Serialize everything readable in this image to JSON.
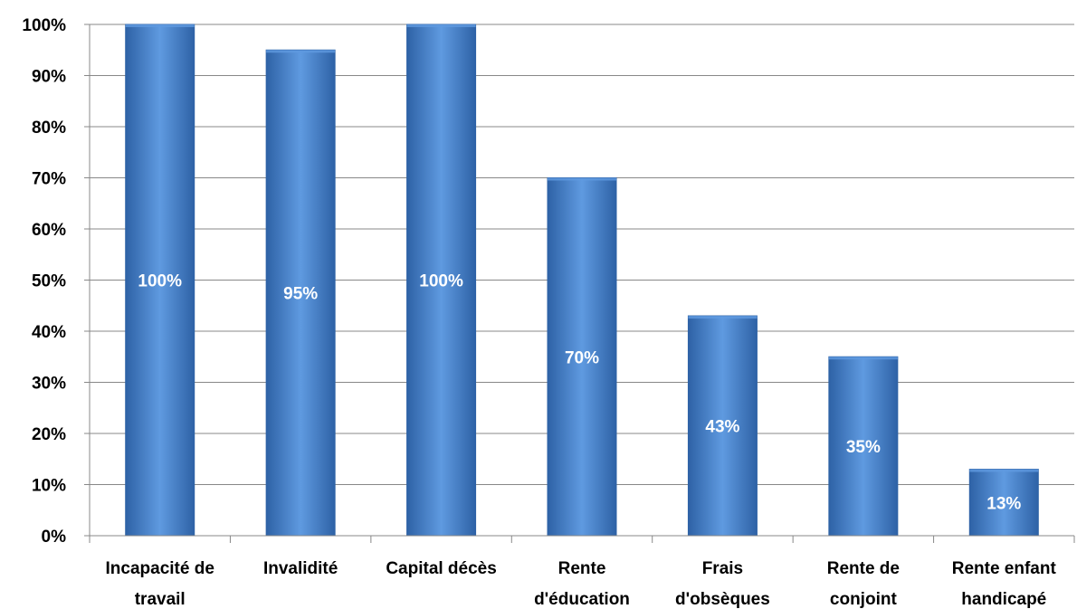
{
  "chart_data": {
    "type": "bar",
    "categories": [
      [
        "Incapacité de",
        "travail"
      ],
      [
        "Invalidité"
      ],
      [
        "Capital décès"
      ],
      [
        "Rente",
        "d'éducation"
      ],
      [
        "Frais",
        "d'obsèques"
      ],
      [
        "Rente de",
        "conjoint"
      ],
      [
        "Rente enfant",
        "handicapé"
      ]
    ],
    "values": [
      100,
      95,
      100,
      70,
      43,
      35,
      13
    ],
    "data_labels": [
      "100%",
      "95%",
      "100%",
      "70%",
      "43%",
      "35%",
      "13%"
    ],
    "ylim": [
      0,
      100
    ],
    "yticks": [
      0,
      10,
      20,
      30,
      40,
      50,
      60,
      70,
      80,
      90,
      100
    ],
    "ytick_labels": [
      "0%",
      "10%",
      "20%",
      "30%",
      "40%",
      "50%",
      "60%",
      "70%",
      "80%",
      "90%",
      "100%"
    ],
    "grid": true,
    "legend": "none",
    "colors": {
      "bar": "#3f7fcf",
      "bar_dark": "#2e62a6",
      "bar_light": "#5f9ae0",
      "grid": "#888888",
      "axis": "#888888"
    }
  }
}
